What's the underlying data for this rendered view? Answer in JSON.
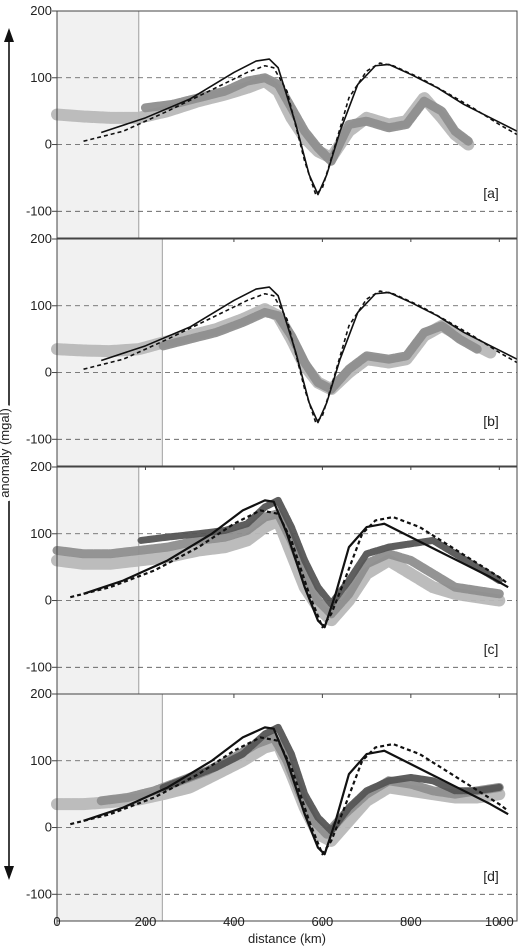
{
  "chart_data": {
    "type": "line",
    "ylabel": "anomaly (mgal)",
    "xlabel": "distance (km)",
    "xlim": [
      0,
      1040
    ],
    "ylim": [
      -140,
      200
    ],
    "xticks": [
      "0",
      "200",
      "400",
      "600",
      "800",
      "1000"
    ],
    "xtick_values": [
      0,
      200,
      400,
      600,
      800,
      1000
    ],
    "yticks": [
      "200",
      "100",
      "0",
      "-100"
    ],
    "ytick_values": [
      200,
      100,
      0,
      -100
    ],
    "reference_lines": [
      -100,
      0,
      100
    ],
    "colors": {
      "frame": "#444444",
      "grid": "#555555",
      "shade": "#f1f1f1",
      "model_solid": "#111111",
      "model_dashed": "#111111",
      "obs_light": "#b8b8b8",
      "obs_mid": "#8e8e8e",
      "obs_dark": "#555555"
    },
    "panels": [
      {
        "label": "[a]",
        "shade_x": [
          0,
          185
        ],
        "model_solid": {
          "x": [
            100,
            200,
            300,
            400,
            450,
            480,
            500,
            540,
            570,
            590,
            610,
            640,
            680,
            720,
            750,
            800,
            860,
            920,
            980,
            1040
          ],
          "y": [
            18,
            40,
            68,
            108,
            125,
            128,
            115,
            30,
            -45,
            -75,
            -45,
            20,
            90,
            118,
            120,
            105,
            85,
            60,
            40,
            20
          ]
        },
        "model_dashed": {
          "x": [
            60,
            150,
            250,
            350,
            430,
            470,
            490,
            520,
            560,
            585,
            600,
            625,
            660,
            700,
            730,
            760,
            820,
            880,
            940,
            1000,
            1040
          ],
          "y": [
            5,
            20,
            50,
            82,
            108,
            118,
            115,
            80,
            -25,
            -75,
            -65,
            -10,
            70,
            110,
            122,
            118,
            100,
            78,
            55,
            30,
            15
          ]
        },
        "observations": [
          {
            "x": [
              0,
              60,
              120,
              185,
              250,
              320,
              380,
              430,
              470,
              500,
              530,
              560,
              590,
              620,
              660,
              700,
              750,
              790,
              830,
              870,
              900,
              930
            ],
            "y": [
              45,
              42,
              40,
              40,
              50,
              65,
              75,
              85,
              95,
              80,
              40,
              10,
              -10,
              -20,
              20,
              40,
              30,
              35,
              70,
              40,
              15,
              0
            ],
            "tone": "obs_light"
          },
          {
            "x": [
              200,
              260,
              320,
              380,
              430,
              470,
              500,
              530,
              560,
              590,
              620,
              660,
              700,
              750,
              790,
              830,
              870,
              900,
              930
            ],
            "y": [
              55,
              60,
              70,
              80,
              95,
              100,
              90,
              55,
              20,
              -5,
              -25,
              30,
              35,
              25,
              30,
              65,
              50,
              20,
              5
            ],
            "tone": "obs_mid"
          }
        ]
      },
      {
        "label": "[b]",
        "shade_x": [
          0,
          238
        ],
        "model_solid": {
          "x": [
            100,
            200,
            300,
            400,
            450,
            480,
            500,
            540,
            570,
            590,
            610,
            640,
            680,
            720,
            750,
            800,
            860,
            920,
            980,
            1040
          ],
          "y": [
            18,
            40,
            68,
            108,
            125,
            128,
            115,
            30,
            -45,
            -75,
            -45,
            20,
            90,
            118,
            120,
            105,
            85,
            60,
            40,
            20
          ]
        },
        "model_dashed": {
          "x": [
            60,
            150,
            250,
            350,
            430,
            470,
            490,
            520,
            560,
            585,
            600,
            625,
            660,
            700,
            730,
            760,
            820,
            880,
            940,
            1000,
            1040
          ],
          "y": [
            5,
            20,
            50,
            82,
            108,
            118,
            115,
            80,
            -25,
            -75,
            -65,
            -10,
            70,
            110,
            122,
            118,
            100,
            78,
            55,
            30,
            15
          ]
        },
        "observations": [
          {
            "x": [
              0,
              60,
              120,
              185,
              240,
              300,
              360,
              420,
              470,
              500,
              530,
              560,
              590,
              620,
              660,
              700,
              750,
              790,
              830,
              870,
              910,
              950,
              980
            ],
            "y": [
              35,
              33,
              32,
              35,
              45,
              55,
              65,
              80,
              95,
              85,
              50,
              10,
              -15,
              -25,
              0,
              20,
              15,
              20,
              55,
              70,
              55,
              40,
              30
            ],
            "tone": "obs_light"
          },
          {
            "x": [
              240,
              300,
              360,
              420,
              470,
              500,
              530,
              560,
              590,
              620,
              660,
              700,
              750,
              790,
              830,
              870,
              910,
              950
            ],
            "y": [
              40,
              50,
              60,
              75,
              90,
              85,
              55,
              15,
              -15,
              -25,
              5,
              25,
              20,
              25,
              60,
              70,
              50,
              35
            ],
            "tone": "obs_mid"
          }
        ]
      },
      {
        "label": "[c]",
        "shade_x": [
          0,
          185
        ],
        "model_solid": {
          "x": [
            60,
            150,
            250,
            350,
            420,
            470,
            490,
            520,
            560,
            590,
            605,
            630,
            660,
            700,
            740,
            800,
            860,
            920,
            980,
            1020
          ],
          "y": [
            10,
            30,
            60,
            100,
            135,
            150,
            148,
            100,
            20,
            -30,
            -40,
            10,
            80,
            110,
            115,
            95,
            75,
            55,
            35,
            20
          ]
        },
        "model_dashed": {
          "x": [
            30,
            120,
            220,
            320,
            400,
            460,
            500,
            530,
            570,
            600,
            620,
            650,
            690,
            720,
            760,
            820,
            880,
            940,
            1000,
            1020
          ],
          "y": [
            5,
            20,
            45,
            80,
            115,
            135,
            130,
            90,
            10,
            -40,
            -20,
            30,
            100,
            120,
            125,
            110,
            85,
            60,
            35,
            25
          ]
        },
        "observations": [
          {
            "x": [
              0,
              60,
              120,
              185,
              250,
              320,
              380,
              430,
              470,
              500,
              530,
              560,
              590,
              620,
              660,
              700,
              750,
              800,
              850,
              900,
              950,
              1000
            ],
            "y": [
              60,
              55,
              55,
              60,
              65,
              75,
              80,
              90,
              110,
              120,
              70,
              20,
              -10,
              -30,
              0,
              40,
              60,
              40,
              20,
              10,
              5,
              0
            ],
            "tone": "obs_light"
          },
          {
            "x": [
              0,
              60,
              120,
              185,
              250,
              320,
              380,
              430,
              470,
              500,
              530,
              560,
              590,
              620,
              660,
              700,
              750,
              800,
              850,
              900,
              950,
              1000
            ],
            "y": [
              75,
              70,
              70,
              75,
              80,
              90,
              95,
              105,
              125,
              130,
              90,
              40,
              0,
              -20,
              10,
              55,
              70,
              60,
              40,
              20,
              15,
              10
            ],
            "tone": "obs_mid"
          },
          {
            "x": [
              190,
              250,
              320,
              380,
              430,
              470,
              500,
              530,
              560,
              590,
              620,
              660,
              700,
              750,
              800,
              850,
              900,
              950,
              1000
            ],
            "y": [
              90,
              95,
              100,
              105,
              115,
              140,
              150,
              110,
              60,
              20,
              -5,
              30,
              70,
              80,
              85,
              90,
              70,
              50,
              30
            ],
            "tone": "obs_dark"
          }
        ]
      },
      {
        "label": "[d]",
        "shade_x": [
          0,
          238
        ],
        "model_solid": {
          "x": [
            60,
            150,
            250,
            350,
            420,
            470,
            490,
            520,
            560,
            590,
            605,
            630,
            660,
            700,
            740,
            800,
            860,
            920,
            980,
            1020
          ],
          "y": [
            10,
            30,
            60,
            100,
            135,
            150,
            148,
            100,
            20,
            -30,
            -40,
            10,
            80,
            110,
            115,
            95,
            75,
            55,
            35,
            20
          ]
        },
        "model_dashed": {
          "x": [
            30,
            120,
            220,
            320,
            400,
            460,
            500,
            530,
            570,
            600,
            620,
            650,
            690,
            720,
            760,
            820,
            880,
            940,
            1000,
            1020
          ],
          "y": [
            5,
            20,
            45,
            80,
            115,
            135,
            130,
            90,
            10,
            -40,
            -20,
            30,
            100,
            120,
            125,
            110,
            85,
            60,
            35,
            25
          ]
        },
        "observations": [
          {
            "x": [
              0,
              60,
              120,
              185,
              240,
              300,
              360,
              420,
              470,
              500,
              530,
              560,
              590,
              620,
              660,
              700,
              750,
              800,
              850,
              900,
              950,
              1000
            ],
            "y": [
              35,
              35,
              38,
              42,
              50,
              60,
              80,
              100,
              120,
              125,
              80,
              30,
              -10,
              -20,
              10,
              40,
              60,
              55,
              50,
              45,
              45,
              50
            ],
            "tone": "obs_light"
          },
          {
            "x": [
              100,
              160,
              220,
              280,
              340,
              400,
              450,
              490,
              520,
              550,
              580,
              610,
              650,
              700,
              750,
              800,
              850,
              900,
              950,
              1000
            ],
            "y": [
              40,
              45,
              55,
              70,
              85,
              105,
              125,
              135,
              100,
              50,
              10,
              -10,
              20,
              50,
              70,
              65,
              55,
              50,
              55,
              60
            ],
            "tone": "obs_mid"
          },
          {
            "x": [
              240,
              300,
              360,
              420,
              470,
              500,
              530,
              560,
              590,
              620,
              660,
              700,
              750,
              800,
              850,
              900,
              950,
              1000
            ],
            "y": [
              60,
              75,
              90,
              110,
              140,
              150,
              110,
              50,
              15,
              -5,
              30,
              55,
              70,
              75,
              70,
              55,
              55,
              60
            ],
            "tone": "obs_dark"
          }
        ]
      }
    ]
  }
}
